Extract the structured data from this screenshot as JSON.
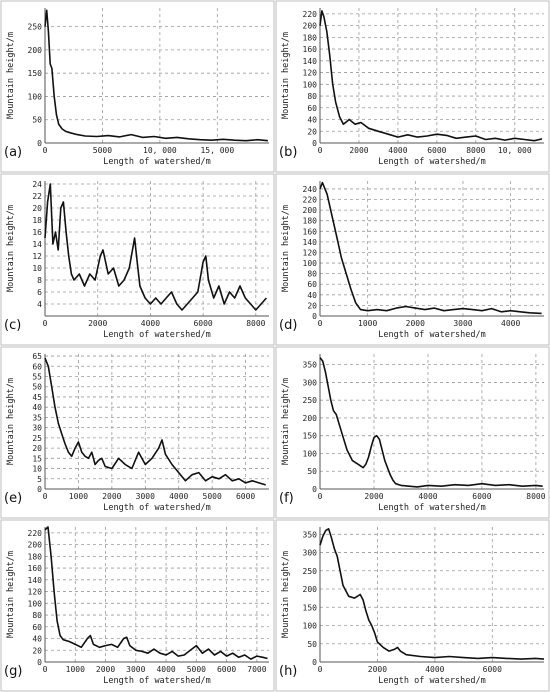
{
  "chart_data": [
    {
      "id": "a",
      "panel_label": "(a)",
      "type": "line",
      "xlabel": "Length of watershed/m",
      "ylabel": "Mountain height/m",
      "xlim": [
        0,
        19500
      ],
      "ylim": [
        0,
        290
      ],
      "xticks": [
        0,
        5000,
        10000,
        15000
      ],
      "xtick_labels": [
        "0",
        "5000",
        "10, 000",
        "15, 000"
      ],
      "yticks": [
        0,
        50,
        100,
        150,
        200,
        250
      ],
      "ytick_labels": [
        "0",
        "50",
        "100",
        "150",
        "200",
        "250"
      ],
      "grid": true,
      "x": [
        0,
        150,
        300,
        450,
        600,
        800,
        1000,
        1200,
        1500,
        1800,
        2200,
        2800,
        3500,
        4500,
        5500,
        6500,
        7500,
        8500,
        9500,
        10500,
        11500,
        12500,
        13500,
        14500,
        15500,
        16500,
        17500,
        18500,
        19400
      ],
      "y": [
        250,
        285,
        240,
        170,
        160,
        100,
        60,
        40,
        30,
        25,
        22,
        18,
        15,
        14,
        16,
        13,
        18,
        12,
        14,
        10,
        12,
        9,
        7,
        6,
        8,
        6,
        5,
        7,
        5
      ]
    },
    {
      "id": "b",
      "panel_label": "(b)",
      "type": "line",
      "xlabel": "Length of watershed/m",
      "ylabel": "Mountain height/m",
      "xlim": [
        0,
        11500
      ],
      "ylim": [
        0,
        230
      ],
      "xticks": [
        0,
        2000,
        4000,
        6000,
        8000,
        10000
      ],
      "xtick_labels": [
        "0",
        "2000",
        "4000",
        "6000",
        "8000",
        "10, 000"
      ],
      "yticks": [
        0,
        20,
        40,
        60,
        80,
        100,
        120,
        140,
        160,
        180,
        200,
        220
      ],
      "ytick_labels": [
        "0",
        "20",
        "40",
        "60",
        "80",
        "100",
        "120",
        "140",
        "160",
        "180",
        "200",
        "220"
      ],
      "grid": true,
      "x": [
        0,
        100,
        200,
        350,
        500,
        650,
        800,
        1000,
        1200,
        1500,
        1800,
        2100,
        2500,
        3000,
        3500,
        4000,
        4500,
        5000,
        5500,
        6000,
        6500,
        7000,
        7500,
        8000,
        8500,
        9000,
        9500,
        10000,
        10500,
        11000,
        11400
      ],
      "y": [
        200,
        225,
        215,
        190,
        150,
        100,
        70,
        45,
        32,
        40,
        32,
        35,
        25,
        20,
        15,
        10,
        14,
        10,
        12,
        15,
        13,
        8,
        10,
        12,
        6,
        8,
        5,
        8,
        6,
        4,
        7
      ]
    },
    {
      "id": "c",
      "panel_label": "(c)",
      "type": "line",
      "xlabel": "Length of watershed/m",
      "ylabel": "Mountain height/m",
      "xlim": [
        0,
        8500
      ],
      "ylim": [
        2,
        24.5
      ],
      "xticks": [
        0,
        2000,
        4000,
        6000,
        8000
      ],
      "xtick_labels": [
        "0",
        "2000",
        "4000",
        "6000",
        "8000"
      ],
      "yticks": [
        4,
        6,
        8,
        10,
        12,
        14,
        16,
        18,
        20,
        22,
        24
      ],
      "ytick_labels": [
        "4",
        "6",
        "8",
        "10",
        "12",
        "14",
        "16",
        "18",
        "20",
        "22",
        "24"
      ],
      "grid": true,
      "x": [
        0,
        100,
        200,
        300,
        400,
        500,
        600,
        700,
        800,
        900,
        1000,
        1100,
        1300,
        1500,
        1700,
        1900,
        2100,
        2200,
        2400,
        2600,
        2800,
        3000,
        3200,
        3400,
        3500,
        3600,
        3800,
        4000,
        4200,
        4400,
        4600,
        4800,
        5000,
        5200,
        5400,
        5600,
        5800,
        6000,
        6100,
        6200,
        6400,
        6600,
        6800,
        7000,
        7200,
        7400,
        7600,
        7800,
        8000,
        8200,
        8400
      ],
      "y": [
        15,
        21,
        24,
        14,
        16,
        13,
        20,
        21,
        16,
        12,
        9,
        8,
        9,
        7,
        9,
        8,
        12,
        13,
        9,
        10,
        7,
        8,
        10,
        15,
        11,
        7,
        5,
        4,
        5,
        4,
        5,
        6,
        4,
        3,
        4,
        5,
        6,
        11,
        12,
        8,
        5,
        7,
        4,
        6,
        5,
        7,
        5,
        4,
        3,
        4,
        5
      ]
    },
    {
      "id": "d",
      "panel_label": "(d)",
      "type": "line",
      "xlabel": "Length of watershed/m",
      "ylabel": "Mountain height/m",
      "xlim": [
        0,
        4700
      ],
      "ylim": [
        0,
        255
      ],
      "xticks": [
        0,
        1000,
        2000,
        3000,
        4000
      ],
      "xtick_labels": [
        "0",
        "1000",
        "2000",
        "3000",
        "4000"
      ],
      "yticks": [
        0,
        20,
        40,
        60,
        80,
        100,
        120,
        140,
        160,
        180,
        200,
        220,
        240
      ],
      "ytick_labels": [
        "0",
        "20",
        "40",
        "60",
        "80",
        "100",
        "120",
        "140",
        "160",
        "180",
        "200",
        "220",
        "240"
      ],
      "grid": true,
      "x": [
        0,
        50,
        150,
        250,
        350,
        450,
        550,
        650,
        750,
        850,
        1000,
        1200,
        1400,
        1600,
        1800,
        2000,
        2200,
        2400,
        2600,
        2800,
        3000,
        3200,
        3400,
        3600,
        3800,
        4000,
        4200,
        4400,
        4650
      ],
      "y": [
        240,
        252,
        230,
        190,
        150,
        110,
        80,
        50,
        25,
        12,
        10,
        12,
        10,
        15,
        18,
        15,
        12,
        15,
        10,
        12,
        14,
        12,
        10,
        14,
        8,
        10,
        8,
        6,
        5
      ]
    },
    {
      "id": "e",
      "panel_label": "(e)",
      "type": "line",
      "xlabel": "Length of watershed/m",
      "ylabel": "Mountain height/m",
      "xlim": [
        0,
        6700
      ],
      "ylim": [
        0,
        66
      ],
      "xticks": [
        0,
        1000,
        2000,
        3000,
        4000,
        5000,
        6000
      ],
      "xtick_labels": [
        "0",
        "1000",
        "2000",
        "3000",
        "4000",
        "5000",
        "6000"
      ],
      "yticks": [
        0,
        5,
        10,
        15,
        20,
        25,
        30,
        35,
        40,
        45,
        50,
        55,
        60,
        65
      ],
      "ytick_labels": [
        "0",
        "5",
        "10",
        "15",
        "20",
        "25",
        "30",
        "35",
        "40",
        "45",
        "50",
        "55",
        "60",
        "65"
      ],
      "grid": true,
      "x": [
        0,
        100,
        200,
        300,
        400,
        500,
        600,
        700,
        800,
        900,
        1000,
        1100,
        1200,
        1300,
        1400,
        1500,
        1600,
        1700,
        1800,
        2000,
        2200,
        2400,
        2600,
        2800,
        3000,
        3200,
        3400,
        3500,
        3600,
        3800,
        4000,
        4200,
        4400,
        4600,
        4800,
        5000,
        5200,
        5400,
        5600,
        5800,
        6000,
        6200,
        6400,
        6600
      ],
      "y": [
        64,
        60,
        50,
        40,
        32,
        27,
        22,
        18,
        16,
        20,
        23,
        18,
        16,
        15,
        18,
        12,
        14,
        15,
        11,
        10,
        15,
        12,
        10,
        18,
        12,
        15,
        20,
        24,
        17,
        12,
        8,
        4,
        7,
        8,
        4,
        6,
        5,
        7,
        4,
        5,
        3,
        4,
        3,
        2
      ]
    },
    {
      "id": "f",
      "panel_label": "(f)",
      "type": "line",
      "xlabel": "Length of watershed/m",
      "ylabel": "Mountain height/m",
      "xlim": [
        0,
        8300
      ],
      "ylim": [
        0,
        380
      ],
      "xticks": [
        0,
        2000,
        4000,
        6000,
        8000
      ],
      "xtick_labels": [
        "0",
        "2000",
        "4000",
        "6000",
        "8000"
      ],
      "yticks": [
        0,
        50,
        100,
        150,
        200,
        250,
        300,
        350
      ],
      "ytick_labels": [
        "0",
        "50",
        "100",
        "150",
        "200",
        "250",
        "300",
        "350"
      ],
      "grid": true,
      "x": [
        0,
        100,
        200,
        300,
        400,
        500,
        600,
        800,
        1000,
        1200,
        1400,
        1600,
        1700,
        1800,
        1900,
        2000,
        2100,
        2200,
        2300,
        2400,
        2500,
        2600,
        2700,
        2800,
        3000,
        3300,
        3600,
        4000,
        4500,
        5000,
        5500,
        6000,
        6500,
        7000,
        7500,
        8000,
        8250
      ],
      "y": [
        370,
        360,
        330,
        290,
        250,
        220,
        210,
        160,
        110,
        80,
        70,
        60,
        70,
        90,
        120,
        145,
        150,
        140,
        110,
        80,
        60,
        40,
        25,
        15,
        10,
        8,
        6,
        10,
        8,
        12,
        10,
        15,
        10,
        12,
        8,
        10,
        8
      ]
    },
    {
      "id": "g",
      "panel_label": "(g)",
      "type": "line",
      "xlabel": "Length of watershed/m",
      "ylabel": "Mountain height/m",
      "xlim": [
        0,
        7400
      ],
      "ylim": [
        0,
        230
      ],
      "xticks": [
        0,
        1000,
        2000,
        3000,
        4000,
        5000,
        6000,
        7000
      ],
      "xtick_labels": [
        "0",
        "1000",
        "2000",
        "3000",
        "4000",
        "5000",
        "6000",
        "7000"
      ],
      "yticks": [
        0,
        20,
        40,
        60,
        80,
        100,
        120,
        140,
        160,
        180,
        200,
        220
      ],
      "ytick_labels": [
        "0",
        "20",
        "40",
        "60",
        "80",
        "100",
        "120",
        "140",
        "160",
        "180",
        "200",
        "220"
      ],
      "grid": true,
      "x": [
        0,
        100,
        200,
        300,
        400,
        500,
        600,
        800,
        1000,
        1200,
        1400,
        1500,
        1600,
        1800,
        2000,
        2200,
        2400,
        2600,
        2700,
        2800,
        3000,
        3200,
        3400,
        3600,
        3800,
        4000,
        4200,
        4400,
        4600,
        4800,
        5000,
        5200,
        5400,
        5600,
        5800,
        6000,
        6200,
        6400,
        6600,
        6800,
        7000,
        7200,
        7350
      ],
      "y": [
        225,
        230,
        180,
        120,
        70,
        45,
        38,
        35,
        30,
        25,
        40,
        45,
        30,
        25,
        28,
        30,
        25,
        40,
        42,
        28,
        20,
        18,
        15,
        22,
        15,
        12,
        18,
        10,
        12,
        20,
        28,
        15,
        22,
        12,
        18,
        10,
        15,
        8,
        12,
        5,
        10,
        8,
        6
      ]
    },
    {
      "id": "h",
      "panel_label": "(h)",
      "type": "line",
      "xlabel": "Length of watershed/m",
      "ylabel": "Mountain height/m",
      "xlim": [
        0,
        7800
      ],
      "ylim": [
        0,
        370
      ],
      "xticks": [
        0,
        2000,
        4000,
        6000
      ],
      "xtick_labels": [
        "0",
        "2000",
        "4000",
        "6000"
      ],
      "yticks": [
        0,
        50,
        100,
        150,
        200,
        250,
        300,
        350
      ],
      "ytick_labels": [
        "0",
        "50",
        "100",
        "150",
        "200",
        "250",
        "300",
        "350"
      ],
      "grid": true,
      "x": [
        0,
        100,
        200,
        300,
        400,
        500,
        600,
        700,
        800,
        1000,
        1200,
        1400,
        1500,
        1600,
        1700,
        1800,
        1900,
        2000,
        2200,
        2400,
        2600,
        2700,
        2800,
        3000,
        3500,
        4000,
        4500,
        5000,
        5500,
        6000,
        6500,
        7000,
        7500,
        7800
      ],
      "y": [
        320,
        345,
        360,
        365,
        340,
        310,
        290,
        250,
        210,
        180,
        175,
        185,
        170,
        140,
        115,
        100,
        80,
        55,
        40,
        30,
        35,
        40,
        30,
        20,
        15,
        12,
        15,
        12,
        10,
        12,
        10,
        8,
        10,
        8
      ]
    }
  ]
}
